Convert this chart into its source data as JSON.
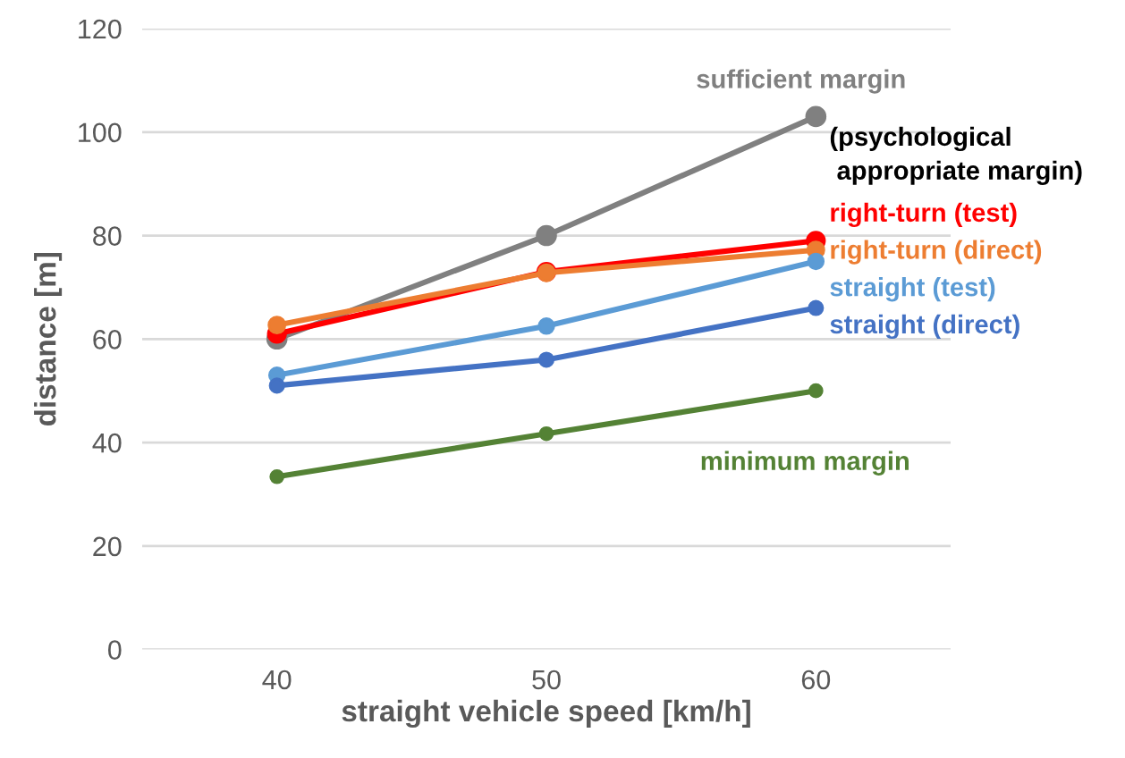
{
  "chart_data": {
    "type": "line",
    "xlabel": "straight vehicle speed [km/h]",
    "ylabel": "distance [m]",
    "x": [
      40,
      50,
      60
    ],
    "series": [
      {
        "name": "sufficient margin",
        "color": "#808080",
        "values": [
          60,
          80,
          103
        ]
      },
      {
        "name": "right-turn (test)",
        "color": "#ff0000",
        "values": [
          61,
          73,
          79
        ]
      },
      {
        "name": "right-turn (direct)",
        "color": "#ed7d31",
        "values": [
          62.7,
          72.8,
          77.2
        ]
      },
      {
        "name": "straight (test)",
        "color": "#5b9bd5",
        "values": [
          53,
          62.5,
          75
        ]
      },
      {
        "name": "straight (direct)",
        "color": "#4472c4",
        "values": [
          51,
          56,
          66
        ]
      },
      {
        "name": "minimum margin",
        "color": "#548235",
        "values": [
          33.4,
          41.7,
          50
        ]
      }
    ],
    "annotations": [
      "(psychological\n appropriate margin)"
    ],
    "xlim": [
      35,
      65
    ],
    "xticks": [
      40,
      50,
      60
    ],
    "ylim": [
      0,
      120
    ],
    "yticks": [
      0,
      20,
      40,
      60,
      80,
      100,
      120
    ],
    "grid": "y",
    "marker": "circle",
    "line_style": "solid",
    "legend": false
  }
}
